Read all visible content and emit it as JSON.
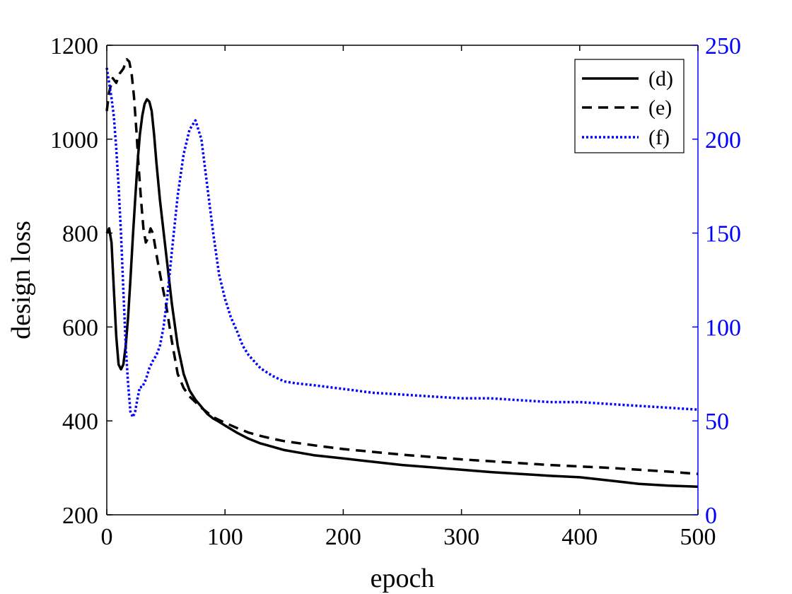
{
  "chart_data": {
    "type": "line",
    "title": "",
    "xlabel": "epoch",
    "ylabel": "design loss",
    "y2label": "",
    "xlim": [
      0,
      500
    ],
    "ylim": [
      200,
      1200
    ],
    "y2lim": [
      0,
      250
    ],
    "xticks": [
      0,
      100,
      200,
      300,
      400,
      500
    ],
    "yticks": [
      200,
      400,
      600,
      800,
      1000,
      1200
    ],
    "y2ticks": [
      0,
      50,
      100,
      150,
      200,
      250
    ],
    "grid": false,
    "legend_position": "top-right",
    "colors": {
      "axis": "#000000",
      "right_axis": "#0000ff"
    },
    "series": [
      {
        "name": "(d)",
        "axis": "left",
        "style": "solid",
        "color": "#000000",
        "x": [
          0,
          2,
          4,
          6,
          8,
          10,
          12,
          14,
          16,
          18,
          20,
          22,
          24,
          26,
          28,
          30,
          32,
          34,
          36,
          38,
          40,
          42,
          45,
          50,
          55,
          60,
          65,
          70,
          75,
          80,
          85,
          90,
          95,
          100,
          110,
          120,
          130,
          140,
          150,
          175,
          200,
          225,
          250,
          275,
          300,
          325,
          350,
          375,
          400,
          425,
          450,
          475,
          500
        ],
        "y": [
          800,
          810,
          780,
          680,
          580,
          520,
          510,
          520,
          560,
          620,
          700,
          790,
          870,
          950,
          1010,
          1050,
          1075,
          1085,
          1080,
          1060,
          1010,
          950,
          870,
          760,
          650,
          560,
          500,
          465,
          445,
          430,
          415,
          405,
          398,
          390,
          375,
          362,
          352,
          345,
          338,
          327,
          320,
          313,
          306,
          301,
          296,
          291,
          287,
          283,
          280,
          273,
          266,
          262,
          260
        ]
      },
      {
        "name": "(e)",
        "axis": "left",
        "style": "dashed",
        "color": "#000000",
        "x": [
          0,
          2,
          5,
          8,
          11,
          14,
          17,
          19,
          21,
          23,
          25,
          27,
          29,
          31,
          33,
          35,
          37,
          39,
          41,
          43,
          46,
          50,
          55,
          60,
          65,
          70,
          75,
          80,
          85,
          90,
          95,
          100,
          110,
          120,
          130,
          140,
          150,
          175,
          200,
          225,
          250,
          275,
          300,
          325,
          350,
          375,
          400,
          425,
          450,
          475,
          500
        ],
        "y": [
          1060,
          1100,
          1130,
          1120,
          1140,
          1150,
          1170,
          1165,
          1140,
          1090,
          1020,
          940,
          870,
          810,
          780,
          790,
          810,
          800,
          770,
          740,
          700,
          650,
          570,
          500,
          470,
          452,
          440,
          428,
          418,
          408,
          402,
          396,
          385,
          375,
          368,
          362,
          357,
          348,
          340,
          334,
          328,
          323,
          318,
          314,
          310,
          306,
          303,
          300,
          296,
          292,
          287
        ]
      },
      {
        "name": "(f)",
        "axis": "right",
        "style": "dotted",
        "color": "#0000ff",
        "x": [
          0,
          2,
          4,
          6,
          8,
          10,
          12,
          14,
          16,
          18,
          20,
          22,
          24,
          26,
          28,
          30,
          33,
          36,
          39,
          42,
          45,
          48,
          51,
          55,
          60,
          65,
          70,
          75,
          80,
          85,
          90,
          95,
          100,
          105,
          110,
          115,
          120,
          130,
          140,
          150,
          160,
          175,
          200,
          225,
          250,
          275,
          300,
          325,
          350,
          375,
          400,
          425,
          450,
          475,
          500
        ],
        "y": [
          238,
          230,
          222,
          212,
          195,
          175,
          150,
          120,
          90,
          70,
          55,
          52,
          55,
          62,
          68,
          68,
          72,
          78,
          82,
          85,
          90,
          100,
          115,
          140,
          170,
          192,
          205,
          210,
          200,
          175,
          150,
          128,
          115,
          105,
          98,
          90,
          85,
          78,
          74,
          71,
          70,
          69,
          67,
          65,
          64,
          63,
          62,
          62,
          61,
          60,
          60,
          59,
          58,
          57,
          56
        ]
      }
    ]
  }
}
